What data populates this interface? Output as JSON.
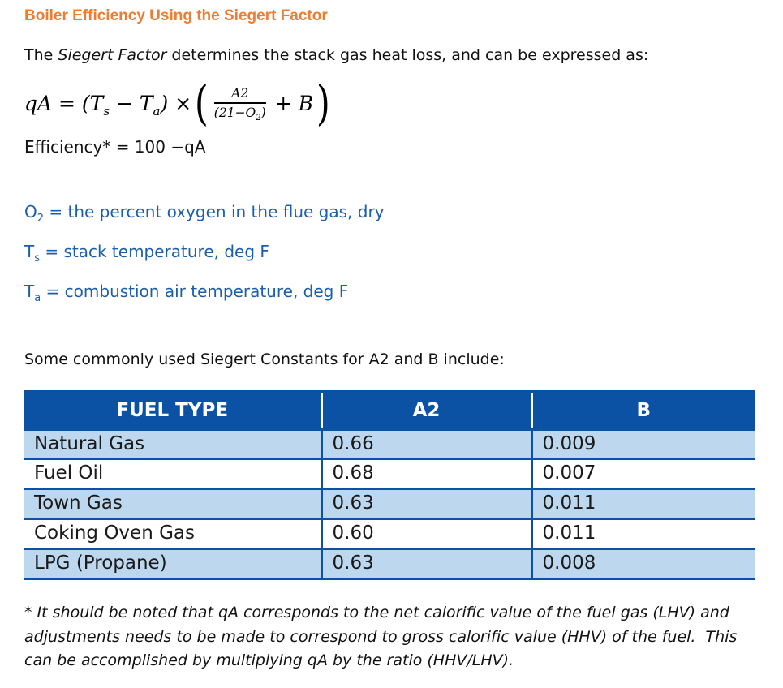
{
  "title": "Boiler Efficiency Using the Siegert Factor",
  "intro": {
    "pre": "The ",
    "em": "Siegert Factor",
    "post": " determines the stack gas heat loss, and can be expressed as:"
  },
  "formula": {
    "lead": "qA = (T",
    "sub1": "s",
    "mid": " − T",
    "sub2": "a",
    "tail": ") × ",
    "open_paren": "(",
    "numerator": "A2",
    "den_pre": "(21−O",
    "den_sub": "2",
    "den_post": ")",
    "plus": "+ B",
    "close_paren": ")"
  },
  "efficiency_line": "Efficiency* = 100 −qA",
  "definitions": [
    {
      "sym": "O",
      "sub": "2",
      "rest": " = the percent oxygen in the flue gas, dry"
    },
    {
      "sym": "T",
      "sub": "s",
      "rest": " = stack temperature, deg F"
    },
    {
      "sym": "T",
      "sub": "a",
      "rest": " = combustion air temperature, deg F"
    }
  ],
  "table_intro": "Some commonly used Siegert Constants for A2 and B include:",
  "table": {
    "headers": [
      "FUEL TYPE",
      "A2",
      "B"
    ],
    "rows": [
      [
        "Natural Gas",
        "0.66",
        "0.009"
      ],
      [
        "Fuel Oil",
        "0.68",
        "0.007"
      ],
      [
        "Town Gas",
        "0.63",
        "0.011"
      ],
      [
        "Coking Oven Gas",
        "0.60",
        "0.011"
      ],
      [
        "LPG (Propane)",
        "0.63",
        "0.008"
      ]
    ]
  },
  "footnote": "* It should be noted that qA corresponds to the net calorific value of the fuel gas (LHV) and adjustments needs to be made to correspond to gross calorific value (HHV) of the fuel.  This can be accomplished by multiplying qA by the ratio (HHV/LHV).",
  "colors": {
    "heading_orange": "#ED7D31",
    "definition_blue": "#1B5EAB",
    "table_header_bg": "#0B52A5",
    "table_border": "#0B52A5",
    "table_row_alt_bg": "#BDD7EE"
  }
}
